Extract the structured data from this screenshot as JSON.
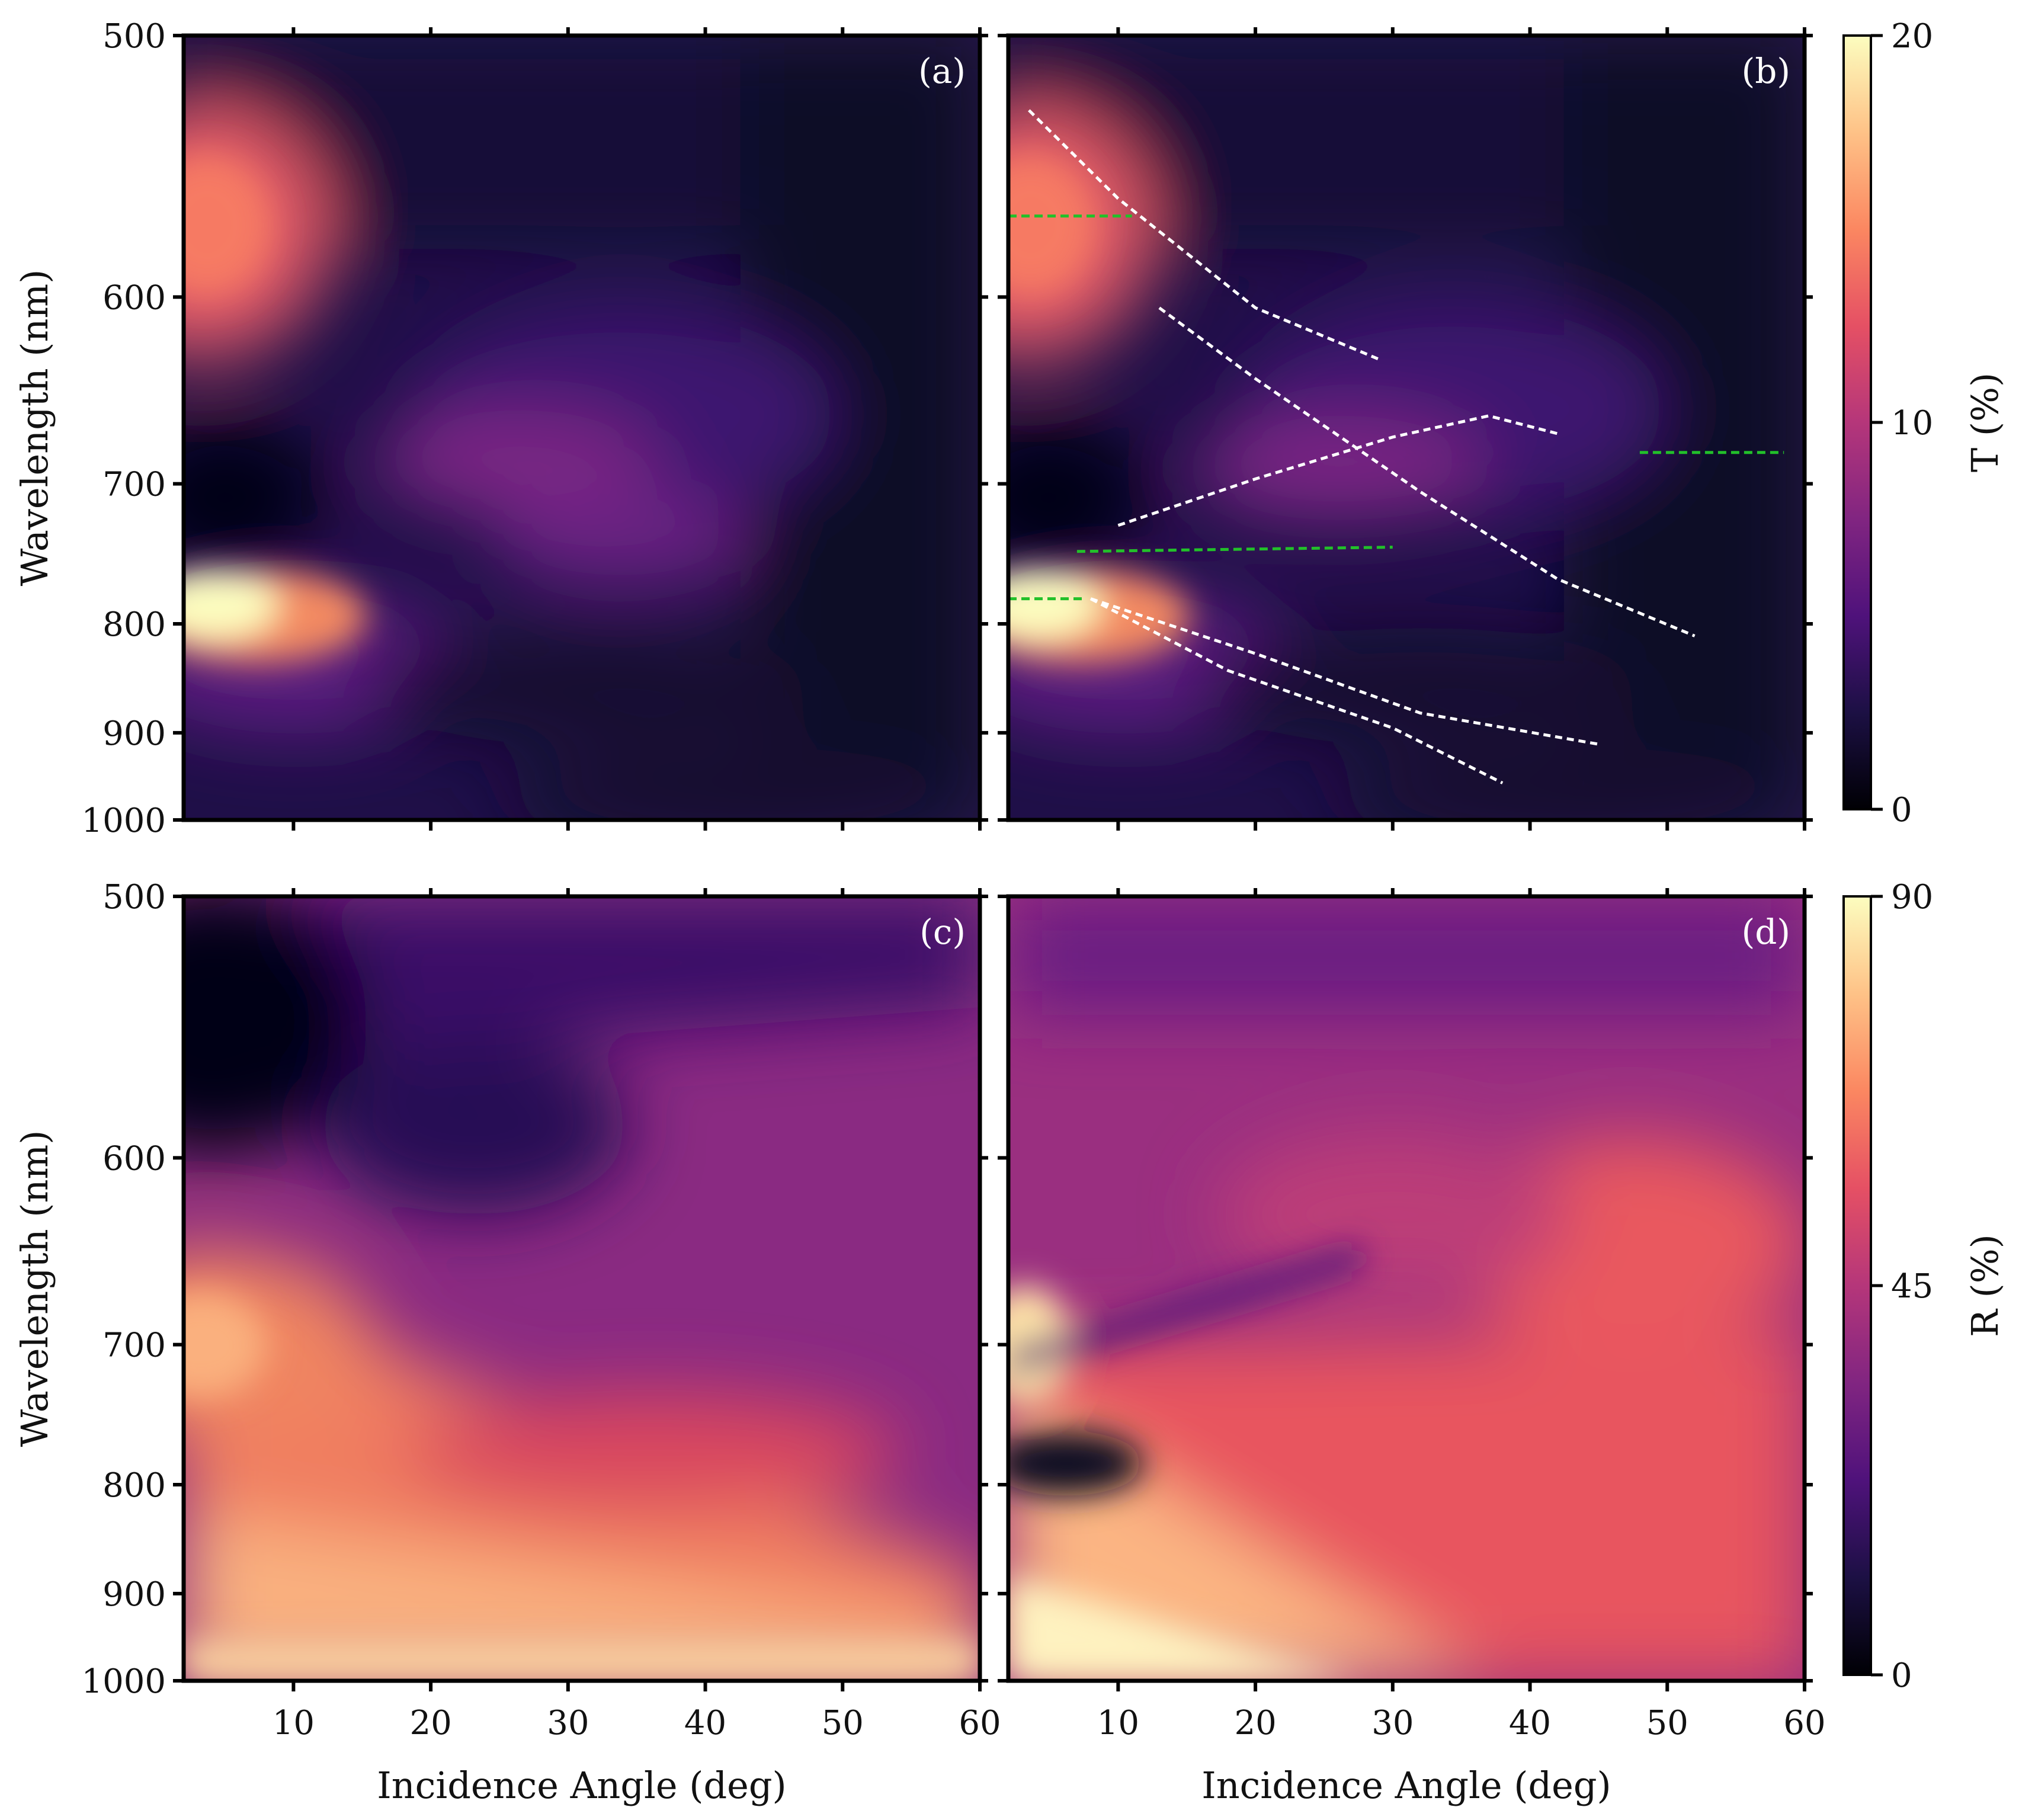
{
  "chart_data": [
    {
      "panel": "(a)",
      "type": "heatmap",
      "xlabel": "",
      "ylabel": "Wavelength (nm)",
      "xlim": [
        2,
        60
      ],
      "ylim": [
        500,
        1000
      ],
      "yticks": [
        500,
        600,
        700,
        800,
        900,
        1000
      ],
      "xticks": [
        10,
        20,
        30,
        40,
        50,
        60
      ],
      "colorbar": "T (%)",
      "vmin": 0,
      "vmax": 20,
      "features": [
        {
          "angle": 5,
          "wavelength": 785,
          "value": 20
        },
        {
          "angle": 4,
          "wavelength": 565,
          "value": 15
        },
        {
          "angle": 5,
          "wavelength": 695,
          "value": 0.3
        },
        {
          "angle": 25,
          "wavelength": 680,
          "value": 9
        },
        {
          "angle": 35,
          "wavelength": 735,
          "value": 8
        }
      ]
    },
    {
      "panel": "(b)",
      "type": "heatmap",
      "xlabel": "",
      "ylabel": "",
      "xlim": [
        2,
        60
      ],
      "ylim": [
        500,
        1000
      ],
      "yticks": [
        500,
        600,
        700,
        800,
        900,
        1000
      ],
      "xticks": [
        10,
        20,
        30,
        40,
        50,
        60
      ],
      "colorbar": "T (%)",
      "vmin": 0,
      "vmax": 20,
      "features": [
        {
          "angle": 5,
          "wavelength": 785,
          "value": 20
        },
        {
          "angle": 4,
          "wavelength": 565,
          "value": 15
        },
        {
          "angle": 5,
          "wavelength": 695,
          "value": 0.3
        },
        {
          "angle": 27,
          "wavelength": 680,
          "value": 10
        }
      ],
      "guide_lines": {
        "white": [
          [
            [
              3.5,
              525
            ],
            [
              10,
              558
            ],
            [
              20,
              605
            ],
            [
              29,
              630
            ]
          ],
          [
            [
              13,
              605
            ],
            [
              20,
              640
            ],
            [
              32,
              705
            ],
            [
              42,
              765
            ],
            [
              52,
              810
            ]
          ],
          [
            [
              10,
              727
            ],
            [
              20,
              697
            ],
            [
              30,
              672
            ],
            [
              37,
              660
            ],
            [
              42,
              670
            ]
          ],
          [
            [
              8,
              780
            ],
            [
              18,
              840
            ],
            [
              30,
              895
            ],
            [
              38,
              955
            ]
          ],
          [
            [
              8,
              780
            ],
            [
              20,
              825
            ],
            [
              32,
              880
            ],
            [
              45,
              912
            ]
          ]
        ],
        "green": [
          [
            [
              2,
              565
            ],
            [
              11,
              565
            ]
          ],
          [
            [
              7,
              745
            ],
            [
              30,
              742
            ]
          ],
          [
            [
              2,
              780
            ],
            [
              7.5,
              780
            ]
          ],
          [
            [
              48,
              681
            ],
            [
              58.5,
              681
            ]
          ]
        ]
      }
    },
    {
      "panel": "(c)",
      "type": "heatmap",
      "xlabel": "Incidence Angle (deg)",
      "ylabel": "Wavelength (nm)",
      "xlim": [
        2,
        60
      ],
      "ylim": [
        500,
        1000
      ],
      "yticks": [
        500,
        600,
        700,
        800,
        900,
        1000
      ],
      "xticks": [
        10,
        20,
        30,
        40,
        50,
        60
      ],
      "colorbar": "R (%)",
      "vmin": 0,
      "vmax": 90,
      "features": [
        {
          "angle": 5,
          "wavelength": 540,
          "value": 3
        },
        {
          "angle": 5,
          "wavelength": 695,
          "value": 72
        },
        {
          "angle": 30,
          "wavelength": 960,
          "value": 82
        },
        {
          "angle": 25,
          "wavelength": 650,
          "value": 20
        }
      ]
    },
    {
      "panel": "(d)",
      "type": "heatmap",
      "xlabel": "Incidence Angle (deg)",
      "ylabel": "",
      "xlim": [
        2,
        60
      ],
      "ylim": [
        500,
        1000
      ],
      "yticks": [
        500,
        600,
        700,
        800,
        900,
        1000
      ],
      "xticks": [
        10,
        20,
        30,
        40,
        50,
        60
      ],
      "colorbar": "R (%)",
      "vmin": 0,
      "vmax": 90,
      "features": [
        {
          "angle": 3,
          "wavelength": 690,
          "value": 85
        },
        {
          "angle": 4,
          "wavelength": 775,
          "value": 5
        },
        {
          "angle": 10,
          "wavelength": 975,
          "value": 88
        },
        {
          "angle": 55,
          "wavelength": 720,
          "value": 60
        }
      ]
    }
  ],
  "colorbars": {
    "top": {
      "label": "T (%)",
      "ticks": [
        "20",
        "10",
        "0"
      ],
      "values": [
        20,
        10,
        0
      ]
    },
    "bottom": {
      "label": "R (%)",
      "ticks": [
        "90",
        "45",
        "0"
      ],
      "values": [
        90,
        45,
        0
      ]
    }
  },
  "colors": {
    "cmap": [
      "#000004",
      "#1c1044",
      "#4f127b",
      "#812581",
      "#b5367a",
      "#e55064",
      "#fb8761",
      "#fec287",
      "#fcfdbf"
    ],
    "guide_white": "#ffffff",
    "guide_green": "#22c02a"
  }
}
